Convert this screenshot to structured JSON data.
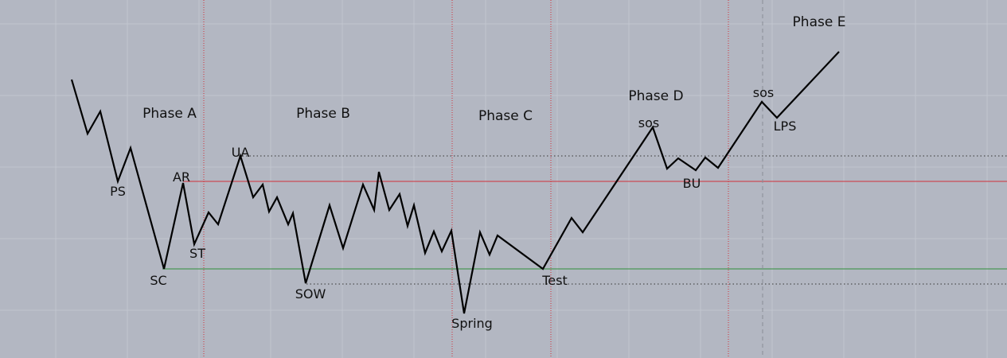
{
  "colors": {
    "background": "#b3b7c2",
    "grid": "#c2c6cf",
    "price_line": "#000000",
    "phase_divider": "#d0303a",
    "resistance_line": "#d0303a",
    "support_line": "#2f8f3a",
    "dotted_level": "#333333",
    "dashed_divider": "#8a8d96"
  },
  "phases": {
    "a": "Phase A",
    "b": "Phase B",
    "c": "Phase C",
    "d": "Phase D",
    "e": "Phase E"
  },
  "events": {
    "ps": "PS",
    "sc": "SC",
    "ar": "AR",
    "st": "ST",
    "ua": "UA",
    "sow": "SOW",
    "spring": "Spring",
    "test": "Test",
    "sos_d": "sos",
    "bu": "BU",
    "sos_e": "sos",
    "lps": "LPS"
  }
}
